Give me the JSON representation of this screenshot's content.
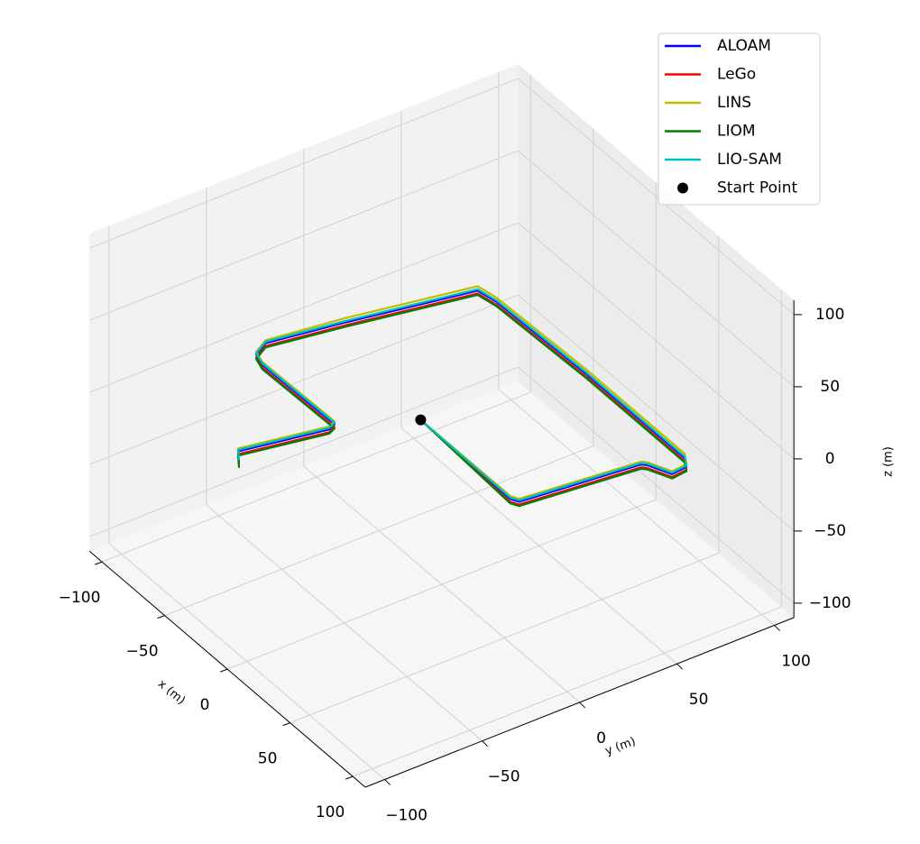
{
  "chart_data": {
    "type": "line3d",
    "xlabel": "x (m)",
    "ylabel": "y (m)",
    "zlabel": "z (m)",
    "xlim": [
      -110,
      110
    ],
    "ylim": [
      -110,
      110
    ],
    "zlim": [
      -110,
      110
    ],
    "xticks": [
      {
        "value": -100,
        "label": "−100"
      },
      {
        "value": -50,
        "label": "−50"
      },
      0,
      50,
      100
    ],
    "yticks": [
      {
        "value": -100,
        "label": "−100"
      },
      {
        "value": -50,
        "label": "−50"
      },
      0,
      50,
      100
    ],
    "zticks": [
      {
        "value": -100,
        "label": "−100"
      },
      {
        "value": -50,
        "label": "−50"
      },
      0,
      50,
      100
    ],
    "grid": true,
    "legend": "upper right",
    "series": [
      {
        "name": "ALOAM",
        "color": "#0000ff",
        "x": [
          -9,
          64,
          68,
          75,
          77,
          89,
          88,
          82,
          4,
          -65,
          -77,
          -90,
          -97,
          -92,
          -84,
          -28,
          -26,
          -35,
          -28
        ],
        "y": [
          -5,
          -6,
          -4,
          54,
          56,
          61,
          69,
          72,
          72,
          70,
          68,
          9,
          -28,
          -36,
          -38,
          -37,
          -41,
          -82,
          -86
        ],
        "z": [
          0,
          0,
          0,
          0,
          0,
          0,
          0,
          0,
          0,
          0,
          0,
          0,
          0,
          0,
          0,
          0,
          0,
          0,
          0
        ]
      },
      {
        "name": "LeGo",
        "color": "#ff0000",
        "x": [
          -9,
          64,
          68,
          75,
          77,
          89,
          88,
          82,
          4,
          -65,
          -77,
          -90,
          -97,
          -92,
          -84,
          -28,
          -26,
          -35,
          -28
        ],
        "y": [
          -5,
          -6,
          -4,
          54,
          56,
          61,
          69,
          72,
          72,
          70,
          68,
          9,
          -28,
          -36,
          -38,
          -37,
          -41,
          -82,
          -86
        ],
        "z": [
          0,
          -2,
          -2,
          -2,
          -2,
          -2,
          -2,
          -2,
          -2,
          -2,
          -2,
          -2,
          -2,
          -2,
          -2,
          -2,
          -2,
          -2,
          -2
        ]
      },
      {
        "name": "LINS",
        "color": "#bfbf00",
        "x": [
          -9,
          64,
          68,
          75,
          77,
          89,
          88,
          82,
          4,
          -65,
          -77,
          -90,
          -97,
          -92,
          -84,
          -28,
          -26,
          -35,
          -28
        ],
        "y": [
          -5,
          -6,
          -4,
          54,
          56,
          61,
          69,
          72,
          72,
          70,
          68,
          9,
          -28,
          -36,
          -38,
          -37,
          -41,
          -82,
          -86
        ],
        "z": [
          0,
          2,
          2,
          2,
          2,
          2,
          2,
          3,
          3,
          3,
          3,
          3,
          2,
          2,
          2,
          2,
          2,
          2,
          2
        ]
      },
      {
        "name": "LIOM",
        "color": "#008000",
        "x": [
          -9,
          64,
          68,
          75,
          77,
          89,
          88,
          82,
          4,
          -65,
          -77,
          -90,
          -97,
          -92,
          -84,
          -28,
          -26,
          -35,
          -28
        ],
        "y": [
          -5,
          -6,
          -4,
          54,
          56,
          61,
          69,
          72,
          72,
          70,
          68,
          9,
          -28,
          -36,
          -38,
          -37,
          -41,
          -82,
          -86
        ],
        "z": [
          0,
          -3,
          -3,
          -3,
          -3,
          -3,
          -3,
          -3,
          -3,
          -3,
          -3,
          -3,
          -3,
          -3,
          -3,
          -3,
          -3,
          -3,
          -4
        ]
      },
      {
        "name": "LIO-SAM",
        "color": "#00bfbf",
        "x": [
          -9,
          64,
          68,
          75,
          77,
          89,
          88,
          82,
          4,
          -65,
          -77,
          -90,
          -97,
          -92,
          -84,
          -28,
          -26,
          -35,
          -28
        ],
        "y": [
          -5,
          -6,
          -4,
          54,
          56,
          61,
          69,
          72,
          72,
          70,
          68,
          9,
          -28,
          -36,
          -38,
          -37,
          -41,
          -82,
          -86
        ],
        "z": [
          0,
          1,
          1,
          1,
          1,
          1,
          1,
          1,
          1,
          1,
          1,
          1,
          1,
          1,
          1,
          1,
          1,
          1,
          1
        ]
      }
    ],
    "start_point": {
      "name": "Start Point",
      "color": "#000000",
      "x": -9,
      "y": -5,
      "z": 0
    }
  }
}
